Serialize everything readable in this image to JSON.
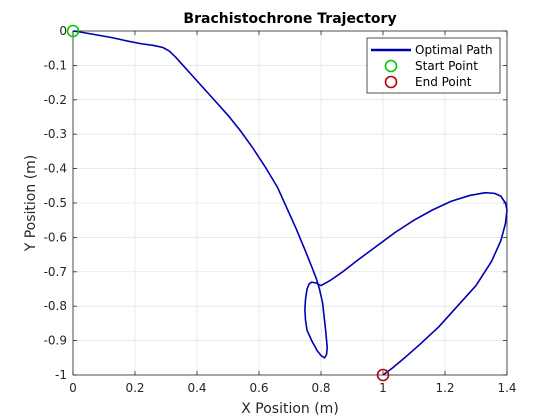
{
  "chart_data": {
    "type": "line",
    "title": "Brachistochrone Trajectory",
    "xlabel": "X Position (m)",
    "ylabel": "Y Position (m)",
    "xlim": [
      0,
      1.4
    ],
    "ylim": [
      -1,
      0
    ],
    "xticks": [
      0,
      0.2,
      0.4,
      0.6,
      0.8,
      1,
      1.2,
      1.4
    ],
    "xtick_labels": [
      "0",
      "0.2",
      "0.4",
      "0.6",
      "0.8",
      "1",
      "1.2",
      "1.4"
    ],
    "yticks": [
      0,
      -0.1,
      -0.2,
      -0.3,
      -0.4,
      -0.5,
      -0.6,
      -0.7,
      -0.8,
      -0.9,
      -1
    ],
    "ytick_labels": [
      "0",
      "-0.1",
      "-0.2",
      "-0.3",
      "-0.4",
      "-0.5",
      "-0.6",
      "-0.7",
      "-0.8",
      "-0.9",
      "-1"
    ],
    "grid": true,
    "legend_position": "top-right",
    "series": [
      {
        "name": "Optimal Path",
        "style": "line",
        "color": "#0000b3",
        "x": [
          0,
          0.03,
          0.08,
          0.13,
          0.18,
          0.22,
          0.26,
          0.29,
          0.31,
          0.33,
          0.35,
          0.38,
          0.42,
          0.46,
          0.5,
          0.54,
          0.58,
          0.62,
          0.66,
          0.69,
          0.72,
          0.75,
          0.77,
          0.785,
          0.795,
          0.805,
          0.81,
          0.815,
          0.818,
          0.82,
          0.818,
          0.812,
          0.802,
          0.788,
          0.77,
          0.755,
          0.75,
          0.748,
          0.75,
          0.755,
          0.762,
          0.77,
          0.785,
          0.8,
          0.83,
          0.87,
          0.92,
          0.98,
          1.04,
          1.1,
          1.16,
          1.22,
          1.28,
          1.33,
          1.36,
          1.38,
          1.395,
          1.4,
          1.395,
          1.38,
          1.35,
          1.3,
          1.24,
          1.18,
          1.12,
          1.07,
          1.03,
          1
        ],
        "y": [
          0,
          -0.004,
          -0.012,
          -0.02,
          -0.03,
          -0.037,
          -0.042,
          -0.048,
          -0.058,
          -0.075,
          -0.095,
          -0.125,
          -0.165,
          -0.205,
          -0.245,
          -0.29,
          -0.34,
          -0.395,
          -0.455,
          -0.515,
          -0.575,
          -0.64,
          -0.685,
          -0.72,
          -0.75,
          -0.79,
          -0.83,
          -0.87,
          -0.9,
          -0.92,
          -0.94,
          -0.95,
          -0.945,
          -0.93,
          -0.9,
          -0.87,
          -0.84,
          -0.81,
          -0.78,
          -0.75,
          -0.735,
          -0.73,
          -0.733,
          -0.74,
          -0.725,
          -0.7,
          -0.665,
          -0.625,
          -0.585,
          -0.55,
          -0.52,
          -0.495,
          -0.478,
          -0.47,
          -0.472,
          -0.48,
          -0.5,
          -0.52,
          -0.56,
          -0.61,
          -0.67,
          -0.74,
          -0.8,
          -0.86,
          -0.91,
          -0.95,
          -0.98,
          -1
        ]
      },
      {
        "name": "Start Point",
        "style": "marker",
        "color": "#00cc00",
        "x": [
          0
        ],
        "y": [
          0
        ]
      },
      {
        "name": "End Point",
        "style": "marker",
        "color": "#b30000",
        "x": [
          1
        ],
        "y": [
          -1
        ]
      }
    ]
  }
}
